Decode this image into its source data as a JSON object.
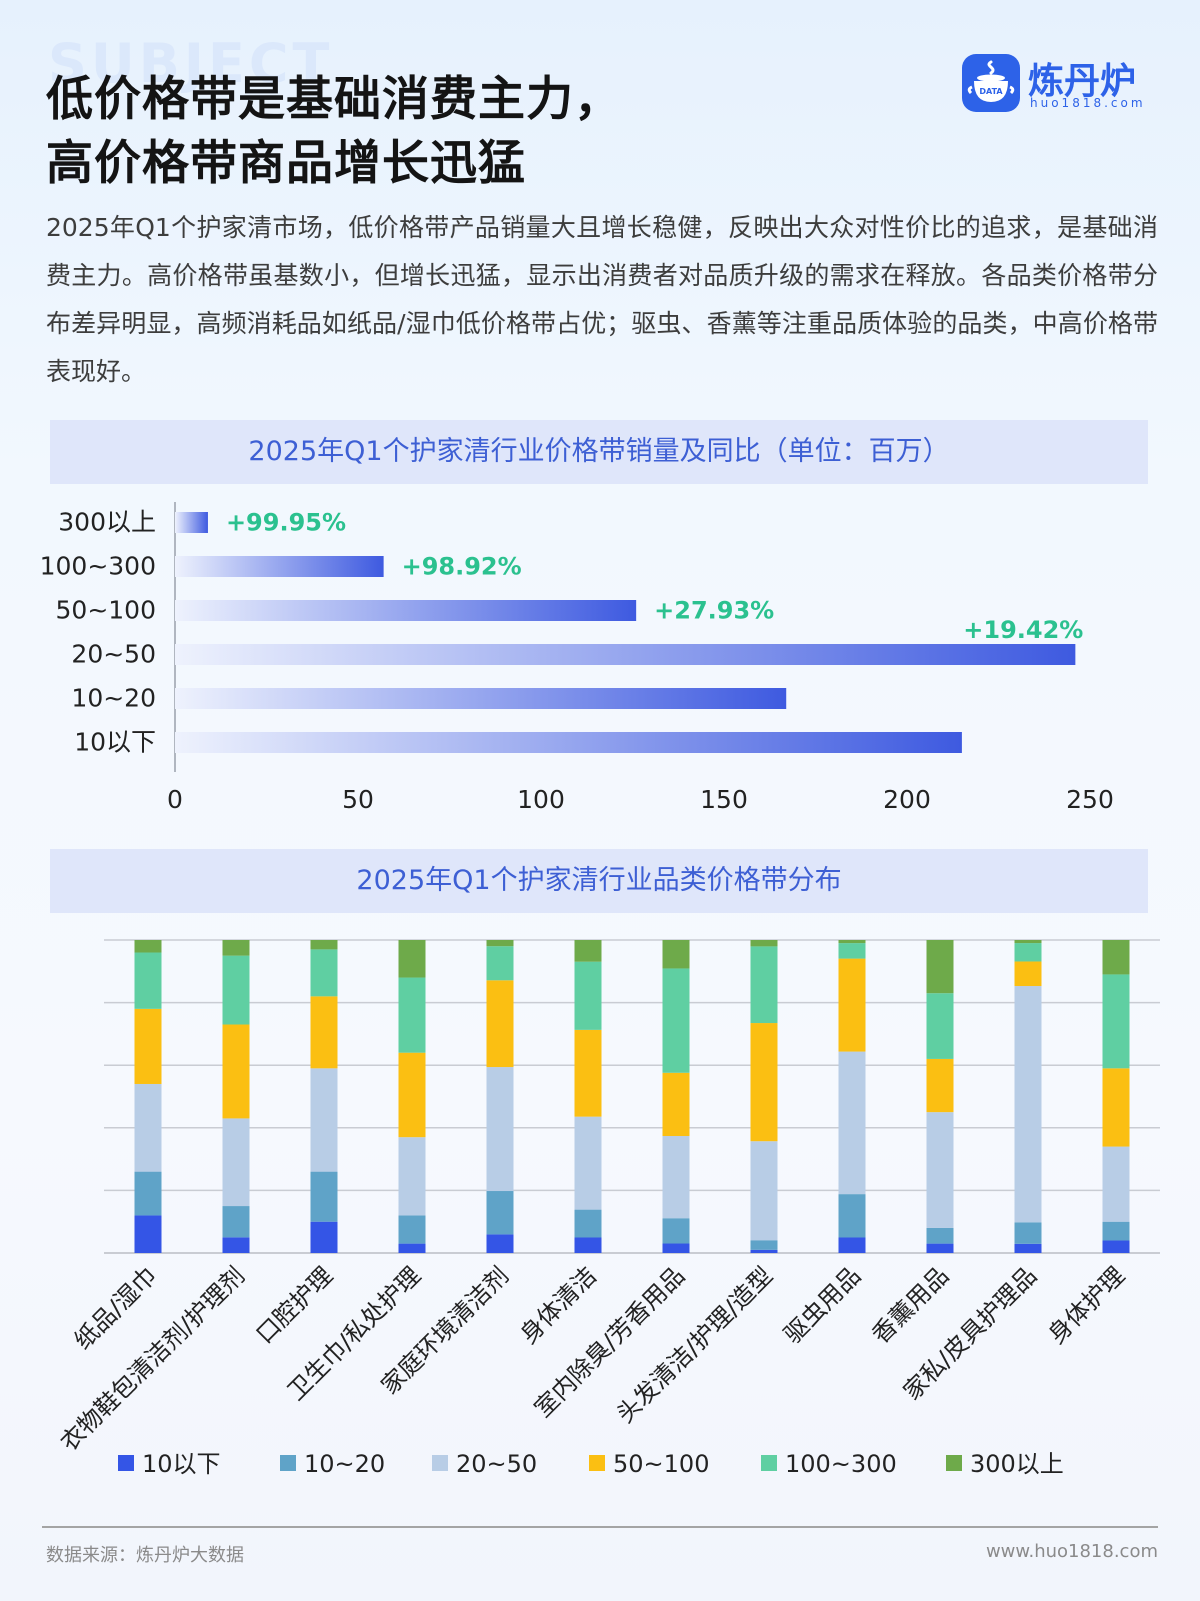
{
  "header": {
    "bg_word": "SUBJECT",
    "title_line1": "低价格带是基础消费主力，",
    "title_line2": "高价格带商品增长迅猛"
  },
  "logo": {
    "name": "炼丹炉",
    "url": "huo1818.com",
    "badge_text": "DATA"
  },
  "intro": "2025年Q1个护家清市场，低价格带产品销量大且增长稳健，反映出大众对性价比的追求，是基础消费主力。高价格带虽基数小，但增长迅猛，显示出消费者对品质升级的需求在释放。各品类价格带分布差异明显，高频消耗品如纸品/湿巾低价格带占优；驱虫、香薰等注重品质体验的品类，中高价格带表现好。",
  "chart1_title": "2025年Q1个护家清行业价格带销量及同比（单位：百万）",
  "chart2_title": "2025年Q1个护家清行业品类价格带分布",
  "colors": {
    "bar_start": "#eef2fd",
    "bar_end": "#3e5ae0",
    "growth_text": "#2bc18f",
    "10以下": "#3455e6",
    "10~20": "#5fa3c8",
    "20~50": "#b8cde6",
    "50~100": "#fbbf12",
    "100~300": "#5fcfa2",
    "300以上": "#6eaa4a"
  },
  "chart_data": [
    {
      "type": "bar",
      "orientation": "horizontal",
      "categories": [
        "300以上",
        "100~300",
        "50~100",
        "20~50",
        "10~20",
        "10以下"
      ],
      "values": [
        9,
        57,
        126,
        246,
        167,
        215
      ],
      "growth_labels": [
        "+99.95%",
        "+98.92%",
        "+27.93%",
        "+19.42%",
        "",
        ""
      ],
      "xlim": [
        0,
        250
      ],
      "xticks": [
        0,
        50,
        100,
        150,
        200,
        250
      ]
    },
    {
      "type": "bar",
      "stacked": true,
      "categories": [
        "纸品/湿巾",
        "衣物鞋包清洁剂/护理剂",
        "口腔护理",
        "卫生巾/私处护理",
        "家庭环境清洁剂",
        "身体清洁",
        "室内除臭/芳香用品",
        "头发清洁/护理/造型",
        "驱虫用品",
        "香薰用品",
        "家私/皮具护理品",
        "身体护理"
      ],
      "series": [
        {
          "name": "10以下",
          "values": [
            12,
            5,
            10,
            3,
            6,
            5,
            3,
            1,
            5,
            3,
            3,
            4
          ]
        },
        {
          "name": "10~20",
          "values": [
            14,
            10,
            16,
            9,
            14,
            9,
            8,
            3,
            14,
            5,
            7,
            6
          ]
        },
        {
          "name": "20~50",
          "values": [
            28,
            28,
            33,
            25,
            40,
            30,
            26,
            31,
            46,
            37,
            77,
            24
          ]
        },
        {
          "name": "50~100",
          "values": [
            24,
            30,
            23,
            27,
            28,
            28,
            20,
            37,
            30,
            17,
            8,
            25
          ]
        },
        {
          "name": "100~300",
          "values": [
            18,
            22,
            15,
            24,
            11,
            22,
            33,
            24,
            5,
            21,
            6,
            30
          ]
        },
        {
          "name": "300以上",
          "values": [
            4,
            5,
            3,
            12,
            2,
            7,
            9,
            2,
            1,
            17,
            1,
            11
          ]
        }
      ],
      "ylim": [
        0,
        100
      ],
      "legend": "bottom",
      "grid": true
    }
  ],
  "footer": {
    "source": "数据来源：炼丹炉大数据",
    "url": "www.huo1818.com"
  }
}
